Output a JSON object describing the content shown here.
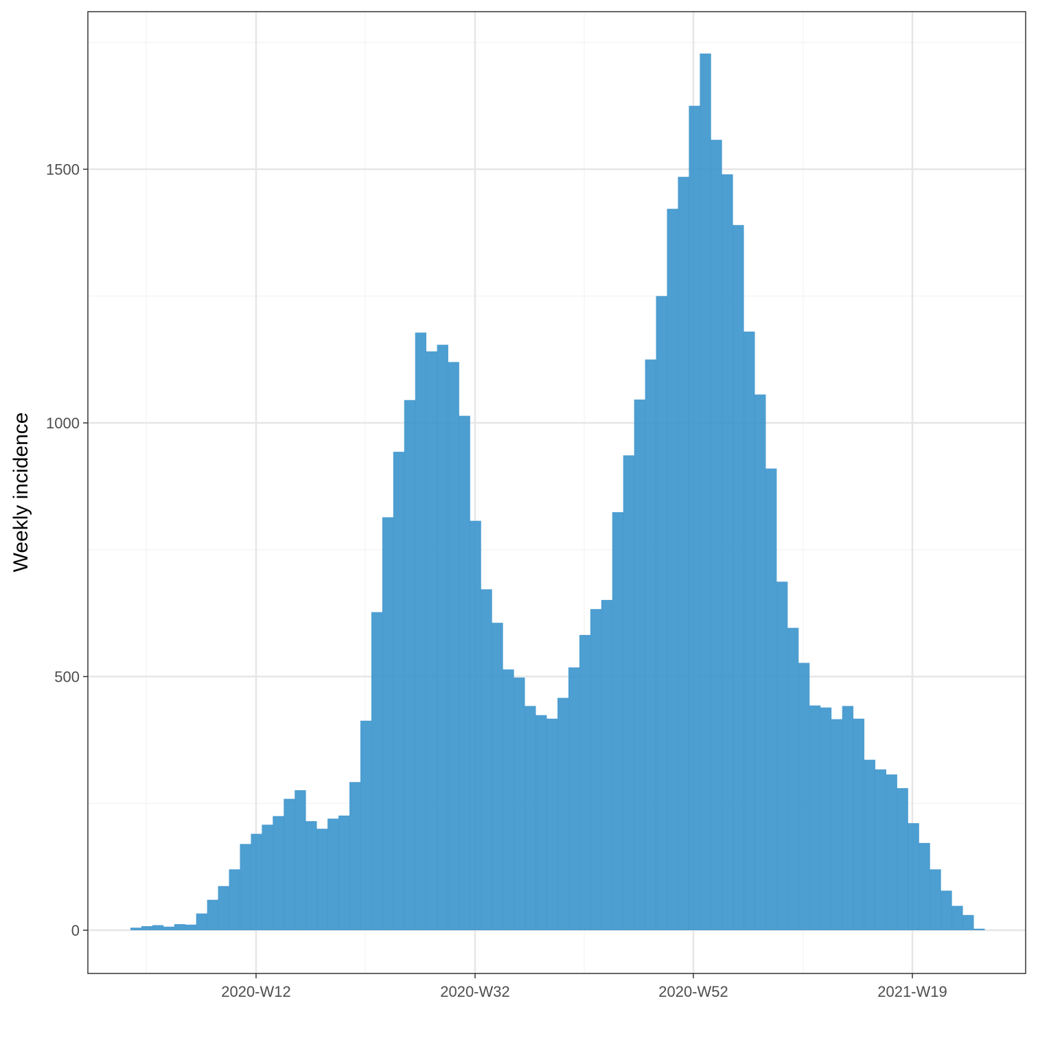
{
  "chart_data": {
    "type": "bar",
    "title": "",
    "xlabel": "",
    "ylabel": "Weekly incidence",
    "x_ticks": [
      "2020-W12",
      "2020-W32",
      "2020-W52",
      "2021-W19"
    ],
    "y_ticks": [
      0,
      500,
      1000,
      1500
    ],
    "ylim": [
      -85,
      1840
    ],
    "grid": true,
    "legend": "none",
    "bar_color": "#3a93cc",
    "series": [
      {
        "values": [
          5,
          8,
          10,
          7,
          12,
          11,
          33,
          60,
          87,
          120,
          170,
          190,
          208,
          225,
          259,
          276,
          215,
          200,
          220,
          226,
          292,
          413,
          627,
          814,
          943,
          1045,
          1178,
          1141,
          1154,
          1120,
          1014,
          807,
          672,
          606,
          514,
          498,
          442,
          424,
          417,
          458,
          518,
          582,
          633,
          651,
          824,
          936,
          1046,
          1125,
          1250,
          1422,
          1485,
          1625,
          1728,
          1558,
          1490,
          1390,
          1180,
          1056,
          910,
          687,
          596,
          527,
          443,
          439,
          416,
          442,
          417,
          336,
          317,
          307,
          280,
          211,
          172,
          120,
          78,
          48,
          30,
          3
        ]
      }
    ]
  }
}
